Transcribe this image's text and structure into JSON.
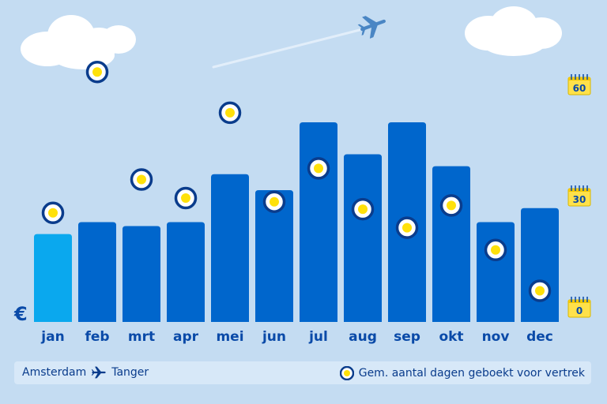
{
  "currency_symbol": "€",
  "footer": {
    "origin": "Amsterdam",
    "destination": "Tanger",
    "legend_label": "Gem. aantal dagen geboekt voor vertrek"
  },
  "colors": {
    "bar": "#0066cc",
    "bar_highlight": "#0aa8ee",
    "marker_ring": "#0a3c8c",
    "marker_fill": "#ffe10a",
    "calendar": "#ffe14a"
  },
  "icons": [
    "plane-icon",
    "calendar-icon",
    "marker-dot-icon",
    "cloud-icon"
  ],
  "chart_data": {
    "type": "bar",
    "categories": [
      "jan",
      "feb",
      "mrt",
      "apr",
      "mei",
      "jun",
      "jul",
      "aug",
      "sep",
      "okt",
      "nov",
      "dec"
    ],
    "series": [
      {
        "values": [
          44,
          50,
          48,
          50,
          74,
          66,
          100,
          84,
          100,
          78,
          50,
          57
        ]
      }
    ],
    "price_ylim": [
      0,
      100
    ],
    "highlight_index": 0,
    "days_booked": {
      "values": [
        26,
        64,
        35,
        30,
        53,
        29,
        38,
        27,
        22,
        28,
        16,
        5
      ],
      "axis_ticks": [
        "60",
        "30",
        "0"
      ],
      "ylim": [
        0,
        60
      ]
    }
  }
}
